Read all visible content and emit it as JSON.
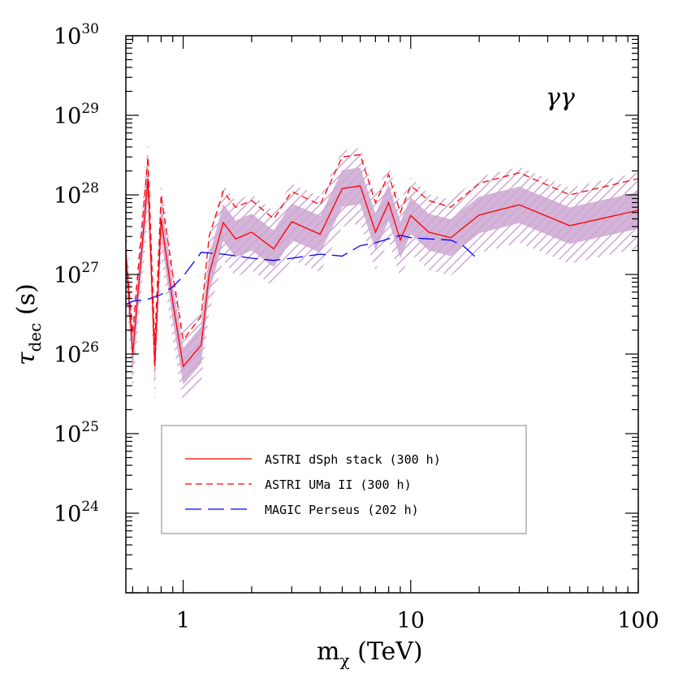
{
  "chart_data": {
    "type": "line",
    "x_scale": "log",
    "y_scale": "log",
    "xlim": [
      0.56,
      100
    ],
    "ylim": [
      1e+23,
      1e+30
    ],
    "xlabel": {
      "main": "m",
      "sub": "χ",
      "unit": " (TeV)"
    },
    "ylabel": {
      "main": "τ",
      "sub": "dec",
      "unit": " (s)"
    },
    "x_ticks": [
      {
        "value": 1,
        "label": "1"
      },
      {
        "value": 10,
        "label": "10"
      },
      {
        "value": 100,
        "label": "100"
      }
    ],
    "y_ticks": [
      {
        "value": 1e+24,
        "base": "10",
        "exp": "24"
      },
      {
        "value": 1e+25,
        "base": "10",
        "exp": "25"
      },
      {
        "value": 1e+26,
        "base": "10",
        "exp": "26"
      },
      {
        "value": 1e+27,
        "base": "10",
        "exp": "27"
      },
      {
        "value": 1e+28,
        "base": "10",
        "exp": "28"
      },
      {
        "value": 1e+29,
        "base": "10",
        "exp": "29"
      },
      {
        "value": 1e+30,
        "base": "10",
        "exp": "30"
      }
    ],
    "annotation": "γγ",
    "legend_position": "bottom-left",
    "series": [
      {
        "name": "ASTRI dSph stack (300 h)",
        "color": "#ff0000",
        "dash": "solid",
        "x": [
          0.56,
          0.6,
          0.7,
          0.75,
          0.8,
          0.9,
          1.0,
          1.2,
          1.3,
          1.5,
          1.7,
          2.0,
          2.5,
          3.0,
          4.0,
          5.0,
          6.0,
          7.0,
          8.0,
          9.0,
          10.0,
          12.0,
          15.0,
          20.0,
          30.0,
          50.0,
          100.0
        ],
        "y": [
          1.8e+27,
          1e+26,
          1.6e+28,
          7e+25,
          5e+27,
          4.5e+26,
          7e+25,
          1.3e+26,
          1e+27,
          4.5e+27,
          2.8e+27,
          3.4e+27,
          2.1e+27,
          4.6e+27,
          3.2e+27,
          1.2e+28,
          1.3e+28,
          3.4e+27,
          8e+27,
          2.7e+27,
          5.5e+27,
          3.4e+27,
          2.9e+27,
          5.6e+27,
          7.5e+27,
          4.1e+27,
          6.4e+27
        ]
      },
      {
        "name": "ASTRI UMa II (300 h)",
        "color": "#ff0000",
        "dash": "dashed",
        "x": [
          0.56,
          0.6,
          0.7,
          0.75,
          0.8,
          0.9,
          1.0,
          1.2,
          1.3,
          1.5,
          1.7,
          2.0,
          2.5,
          3.0,
          4.0,
          5.0,
          6.0,
          7.0,
          8.0,
          9.0,
          10.0,
          12.0,
          15.0,
          20.0,
          30.0,
          50.0,
          100.0
        ],
        "y": [
          2e+27,
          1.8e+26,
          3e+28,
          1.3e+26,
          1e+28,
          1e+27,
          1.5e+26,
          3e+26,
          3e+27,
          1.1e+28,
          7e+27,
          8.5e+27,
          5e+27,
          1.1e+28,
          7.5e+27,
          3e+28,
          3.2e+28,
          8e+27,
          1.8e+28,
          6e+27,
          1.3e+28,
          8.5e+27,
          7e+27,
          1.4e+28,
          1.9e+28,
          1e+28,
          1.6e+28
        ]
      },
      {
        "name": "MAGIC Perseus (202 h)",
        "color": "#0000ff",
        "dash": "long-dashed",
        "x": [
          0.56,
          0.6,
          0.7,
          0.8,
          0.9,
          1.0,
          1.2,
          1.5,
          2.0,
          2.5,
          3.0,
          4.0,
          5.0,
          6.0,
          7.0,
          9.0,
          10.0,
          12.0,
          15.0,
          17.0,
          20.0
        ],
        "y": [
          4.2e+26,
          4.6e+26,
          4.9e+26,
          5.6e+26,
          7e+26,
          9.5e+26,
          1.9e+27,
          1.8e+27,
          1.6e+27,
          1.5e+27,
          1.6e+27,
          1.8e+27,
          1.7e+27,
          2.3e+27,
          2.5e+27,
          3.1e+27,
          2.9e+27,
          2.8e+27,
          2.7e+27,
          2.3e+27,
          1.5e+27
        ]
      }
    ],
    "bands": [
      {
        "around": "ASTRI dSph stack (300 h)",
        "color": "#cda7d1",
        "style": "filled",
        "factor": 1.7
      },
      {
        "around": "ASTRI dSph stack (300 h)",
        "color": "#cda7d1",
        "style": "hatched",
        "factor": 3.0
      }
    ]
  }
}
